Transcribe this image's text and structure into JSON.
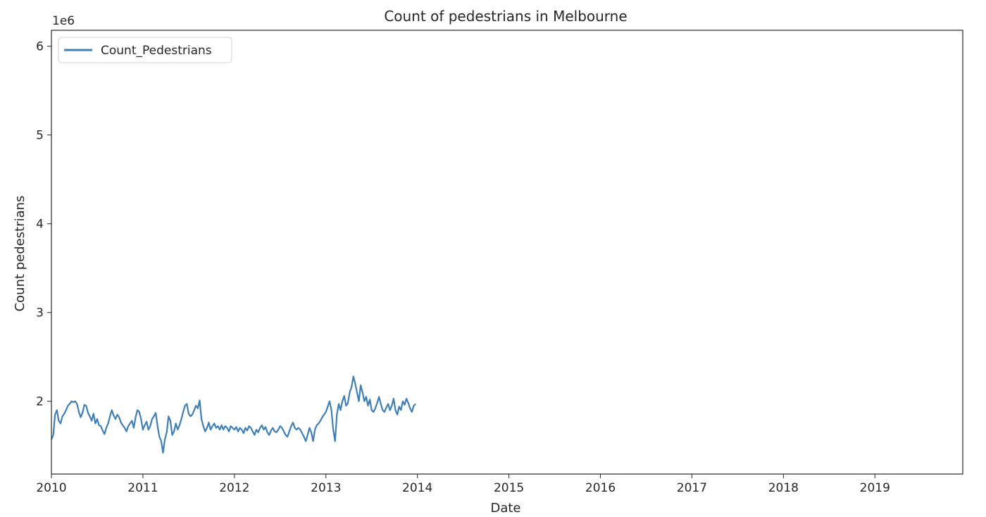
{
  "chart_data": {
    "type": "line",
    "title": "Count of pedestrians in Melbourne",
    "xlabel": "Date",
    "ylabel": "Count pedestrians",
    "y_offset_label": "1e6",
    "y_multiplier": 1000000,
    "xlim": [
      2010.0,
      2019.96
    ],
    "ylim": [
      1.18,
      6.18
    ],
    "x_tick_labels": [
      "2010",
      "2011",
      "2012",
      "2013",
      "2014",
      "2015",
      "2016",
      "2017",
      "2018",
      "2019"
    ],
    "x_tick_values": [
      2010,
      2011,
      2012,
      2013,
      2014,
      2015,
      2016,
      2017,
      2018,
      2019
    ],
    "y_tick_labels": [
      "2",
      "3",
      "4",
      "5",
      "6"
    ],
    "y_tick_values": [
      2,
      3,
      4,
      5,
      6
    ],
    "grid": false,
    "legend_position": "top-left",
    "series": [
      {
        "name": "Count_Pedestrians",
        "color": "#3f7fb5",
        "points": [
          [
            2010.0,
            1.57
          ],
          [
            2010.02,
            1.62
          ],
          [
            2010.04,
            1.85
          ],
          [
            2010.06,
            1.9
          ],
          [
            2010.08,
            1.78
          ],
          [
            2010.1,
            1.75
          ],
          [
            2010.12,
            1.83
          ],
          [
            2010.14,
            1.86
          ],
          [
            2010.16,
            1.9
          ],
          [
            2010.18,
            1.95
          ],
          [
            2010.2,
            1.97
          ],
          [
            2010.22,
            2.0
          ],
          [
            2010.24,
            1.99
          ],
          [
            2010.26,
            2.0
          ],
          [
            2010.28,
            1.97
          ],
          [
            2010.3,
            1.88
          ],
          [
            2010.32,
            1.82
          ],
          [
            2010.34,
            1.87
          ],
          [
            2010.36,
            1.96
          ],
          [
            2010.38,
            1.95
          ],
          [
            2010.4,
            1.87
          ],
          [
            2010.42,
            1.83
          ],
          [
            2010.44,
            1.78
          ],
          [
            2010.46,
            1.86
          ],
          [
            2010.48,
            1.75
          ],
          [
            2010.5,
            1.8
          ],
          [
            2010.52,
            1.73
          ],
          [
            2010.54,
            1.72
          ],
          [
            2010.56,
            1.67
          ],
          [
            2010.58,
            1.63
          ],
          [
            2010.6,
            1.7
          ],
          [
            2010.62,
            1.75
          ],
          [
            2010.64,
            1.83
          ],
          [
            2010.66,
            1.9
          ],
          [
            2010.68,
            1.84
          ],
          [
            2010.7,
            1.8
          ],
          [
            2010.72,
            1.85
          ],
          [
            2010.74,
            1.82
          ],
          [
            2010.76,
            1.76
          ],
          [
            2010.78,
            1.73
          ],
          [
            2010.8,
            1.7
          ],
          [
            2010.82,
            1.66
          ],
          [
            2010.84,
            1.72
          ],
          [
            2010.86,
            1.75
          ],
          [
            2010.88,
            1.78
          ],
          [
            2010.9,
            1.7
          ],
          [
            2010.92,
            1.82
          ],
          [
            2010.94,
            1.9
          ],
          [
            2010.96,
            1.88
          ],
          [
            2010.98,
            1.8
          ],
          [
            2011.0,
            1.68
          ],
          [
            2011.02,
            1.73
          ],
          [
            2011.04,
            1.77
          ],
          [
            2011.06,
            1.68
          ],
          [
            2011.08,
            1.72
          ],
          [
            2011.1,
            1.8
          ],
          [
            2011.12,
            1.83
          ],
          [
            2011.14,
            1.87
          ],
          [
            2011.16,
            1.72
          ],
          [
            2011.18,
            1.6
          ],
          [
            2011.2,
            1.55
          ],
          [
            2011.22,
            1.42
          ],
          [
            2011.24,
            1.57
          ],
          [
            2011.26,
            1.65
          ],
          [
            2011.28,
            1.83
          ],
          [
            2011.3,
            1.78
          ],
          [
            2011.32,
            1.62
          ],
          [
            2011.34,
            1.66
          ],
          [
            2011.36,
            1.75
          ],
          [
            2011.38,
            1.68
          ],
          [
            2011.4,
            1.73
          ],
          [
            2011.42,
            1.8
          ],
          [
            2011.44,
            1.88
          ],
          [
            2011.46,
            1.95
          ],
          [
            2011.48,
            1.97
          ],
          [
            2011.5,
            1.86
          ],
          [
            2011.52,
            1.83
          ],
          [
            2011.54,
            1.85
          ],
          [
            2011.56,
            1.9
          ],
          [
            2011.58,
            1.95
          ],
          [
            2011.6,
            1.92
          ],
          [
            2011.62,
            2.01
          ],
          [
            2011.64,
            1.8
          ],
          [
            2011.66,
            1.72
          ],
          [
            2011.68,
            1.66
          ],
          [
            2011.7,
            1.7
          ],
          [
            2011.72,
            1.76
          ],
          [
            2011.74,
            1.68
          ],
          [
            2011.76,
            1.72
          ],
          [
            2011.78,
            1.75
          ],
          [
            2011.8,
            1.7
          ],
          [
            2011.82,
            1.72
          ],
          [
            2011.84,
            1.68
          ],
          [
            2011.86,
            1.73
          ],
          [
            2011.88,
            1.68
          ],
          [
            2011.9,
            1.72
          ],
          [
            2011.92,
            1.7
          ],
          [
            2011.94,
            1.66
          ],
          [
            2011.96,
            1.72
          ],
          [
            2011.98,
            1.7
          ],
          [
            2012.0,
            1.68
          ],
          [
            2012.02,
            1.71
          ],
          [
            2012.04,
            1.66
          ],
          [
            2012.06,
            1.7
          ],
          [
            2012.08,
            1.68
          ],
          [
            2012.1,
            1.64
          ],
          [
            2012.12,
            1.7
          ],
          [
            2012.14,
            1.67
          ],
          [
            2012.16,
            1.72
          ],
          [
            2012.18,
            1.7
          ],
          [
            2012.2,
            1.66
          ],
          [
            2012.22,
            1.62
          ],
          [
            2012.24,
            1.68
          ],
          [
            2012.26,
            1.65
          ],
          [
            2012.28,
            1.7
          ],
          [
            2012.3,
            1.73
          ],
          [
            2012.32,
            1.68
          ],
          [
            2012.34,
            1.71
          ],
          [
            2012.36,
            1.65
          ],
          [
            2012.38,
            1.62
          ],
          [
            2012.4,
            1.67
          ],
          [
            2012.42,
            1.7
          ],
          [
            2012.44,
            1.66
          ],
          [
            2012.46,
            1.65
          ],
          [
            2012.48,
            1.68
          ],
          [
            2012.5,
            1.72
          ],
          [
            2012.52,
            1.7
          ],
          [
            2012.54,
            1.66
          ],
          [
            2012.56,
            1.62
          ],
          [
            2012.58,
            1.6
          ],
          [
            2012.6,
            1.66
          ],
          [
            2012.62,
            1.72
          ],
          [
            2012.64,
            1.76
          ],
          [
            2012.66,
            1.7
          ],
          [
            2012.68,
            1.68
          ],
          [
            2012.7,
            1.7
          ],
          [
            2012.72,
            1.68
          ],
          [
            2012.74,
            1.64
          ],
          [
            2012.76,
            1.6
          ],
          [
            2012.78,
            1.55
          ],
          [
            2012.8,
            1.62
          ],
          [
            2012.82,
            1.7
          ],
          [
            2012.84,
            1.65
          ],
          [
            2012.86,
            1.55
          ],
          [
            2012.88,
            1.68
          ],
          [
            2012.9,
            1.73
          ],
          [
            2012.92,
            1.75
          ],
          [
            2012.94,
            1.78
          ],
          [
            2012.96,
            1.82
          ],
          [
            2012.98,
            1.85
          ],
          [
            2013.0,
            1.88
          ],
          [
            2013.02,
            1.94
          ],
          [
            2013.04,
            2.0
          ],
          [
            2013.06,
            1.9
          ],
          [
            2013.08,
            1.68
          ],
          [
            2013.1,
            1.55
          ],
          [
            2013.12,
            1.85
          ],
          [
            2013.14,
            1.97
          ],
          [
            2013.16,
            1.9
          ],
          [
            2013.18,
            2.0
          ],
          [
            2013.2,
            2.06
          ],
          [
            2013.22,
            1.95
          ],
          [
            2013.24,
            1.98
          ],
          [
            2013.26,
            2.1
          ],
          [
            2013.28,
            2.16
          ],
          [
            2013.3,
            2.28
          ],
          [
            2013.32,
            2.2
          ],
          [
            2013.34,
            2.1
          ],
          [
            2013.36,
            2.0
          ],
          [
            2013.38,
            2.18
          ],
          [
            2013.4,
            2.1
          ],
          [
            2013.42,
            2.0
          ],
          [
            2013.44,
            2.05
          ],
          [
            2013.46,
            1.95
          ],
          [
            2013.48,
            2.02
          ],
          [
            2013.5,
            1.9
          ],
          [
            2013.52,
            1.88
          ],
          [
            2013.54,
            1.92
          ],
          [
            2013.56,
            1.98
          ],
          [
            2013.58,
            2.05
          ],
          [
            2013.6,
            1.97
          ],
          [
            2013.62,
            1.9
          ],
          [
            2013.64,
            1.88
          ],
          [
            2013.66,
            1.93
          ],
          [
            2013.68,
            1.97
          ],
          [
            2013.7,
            1.9
          ],
          [
            2013.72,
            1.95
          ],
          [
            2013.74,
            2.03
          ],
          [
            2013.76,
            1.9
          ],
          [
            2013.78,
            1.85
          ],
          [
            2013.8,
            1.94
          ],
          [
            2013.82,
            1.9
          ],
          [
            2013.84,
            2.0
          ],
          [
            2013.86,
            1.96
          ],
          [
            2013.88,
            2.03
          ],
          [
            2013.9,
            1.98
          ],
          [
            2013.92,
            1.92
          ],
          [
            2013.94,
            1.88
          ],
          [
            2013.96,
            1.95
          ],
          [
            2013.98,
            1.97
          ]
        ]
      }
    ]
  }
}
